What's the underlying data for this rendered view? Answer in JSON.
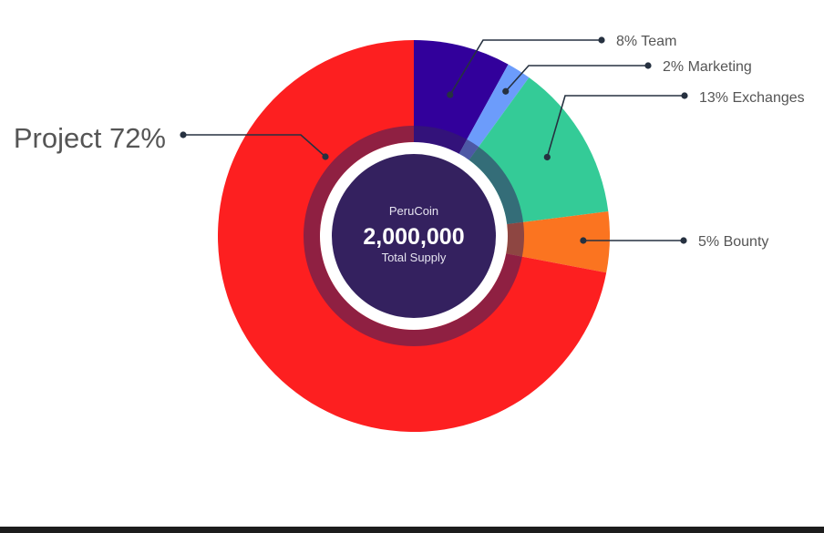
{
  "chart_data": {
    "type": "pie",
    "style": "donut",
    "slices": [
      {
        "label": "8% Team",
        "value": 8,
        "color": "#32009b"
      },
      {
        "label": "2% Marketing",
        "value": 2,
        "color": "#6c9cfb"
      },
      {
        "label": "13% Exchanges",
        "value": 13,
        "color": "#34cb97"
      },
      {
        "label": "5% Bounty",
        "value": 5,
        "color": "#fb7420"
      },
      {
        "label": "Project 72%",
        "value": 72,
        "color": "#fd1f20"
      }
    ],
    "center": {
      "name": "PeruCoin",
      "value": "2,000,000",
      "caption": "Total Supply",
      "color": "#34215f"
    },
    "legend": "callouts"
  }
}
